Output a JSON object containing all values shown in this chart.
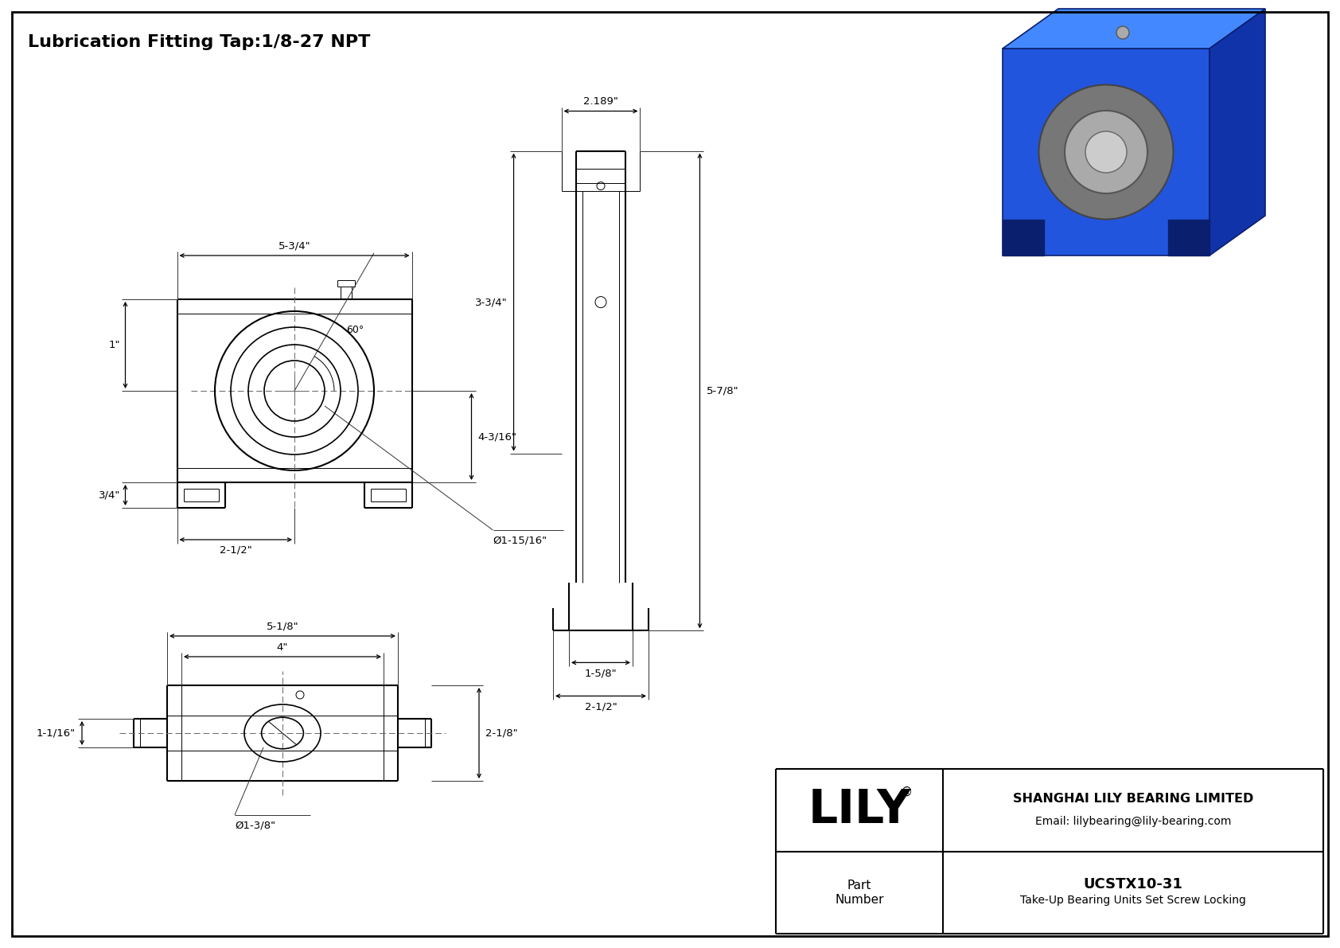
{
  "bg_color": "#ffffff",
  "line_color": "#000000",
  "dim_color": "#333333",
  "title": "Lubrication Fitting Tap:1/8-27 NPT",
  "title_fontsize": 16,
  "company": "SHANGHAI LILY BEARING LIMITED",
  "email": "Email: lilybearing@lily-bearing.com",
  "part_number": "UCSTX10-31",
  "part_desc": "Take-Up Bearing Units Set Screw Locking",
  "lily_text": "LILY",
  "dims_front": {
    "width_label": "5-3/4\"",
    "height_label": "4-3/16\"",
    "slot_label": "2-1/2\"",
    "bore_label": "Ø1-15/16\"",
    "foot_h": "1\"",
    "foot_w": "3/4\"",
    "angle_label": "60°"
  },
  "dims_side": {
    "width_label": "2.189\"",
    "height1_label": "3-3/4\"",
    "height2_label": "5-7/8\"",
    "base_w1": "1-5/8\"",
    "base_w2": "2-1/2\""
  },
  "dims_top": {
    "width1_label": "5-1/8\"",
    "width2_label": "4\"",
    "height_label": "2-1/8\"",
    "foot_label": "1-1/16\"",
    "bore_label": "Ø1-3/8\""
  }
}
